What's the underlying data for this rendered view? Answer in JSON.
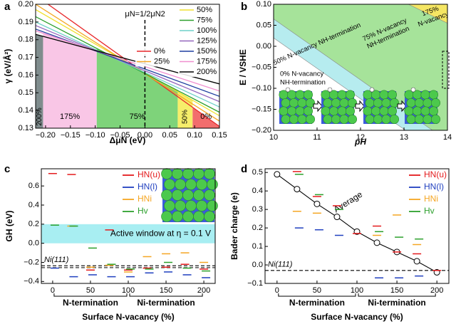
{
  "chart_data": [
    {
      "type": "line",
      "panel": "a",
      "xlabel": "ΔμN (eV)",
      "ylabel": "γ (eV/Å²)",
      "x": [
        -0.22,
        0.15
      ],
      "xlim": [
        -0.22,
        0.15
      ],
      "ylim": [
        0.13,
        0.2
      ],
      "xticks": [
        {
          "value": -0.2,
          "label": "−0.20"
        },
        {
          "value": -0.15,
          "label": "−0.15"
        },
        {
          "value": -0.1,
          "label": "−0.10"
        },
        {
          "value": -0.05,
          "label": "−0.05"
        },
        {
          "value": 0,
          "label": "0.00"
        },
        0.05,
        {
          "value": 0.1,
          "label": "0.10"
        },
        0.15
      ],
      "yticks": [
        0.13,
        0.14,
        0.15,
        0.16,
        0.17,
        0.18,
        0.19,
        {
          "value": 0.2,
          "label": "0.20"
        }
      ],
      "series": [
        {
          "name": "0%",
          "color": "#e8272a",
          "values": [
            0.205,
            0.131
          ]
        },
        {
          "name": "25%",
          "color": "#f5a623",
          "values": [
            0.2,
            0.134
          ]
        },
        {
          "name": "50%",
          "color": "#f0e130",
          "values": [
            0.197,
            0.137
          ]
        },
        {
          "name": "75%",
          "color": "#2ca02c",
          "values": [
            0.193,
            0.139
          ]
        },
        {
          "name": "100%",
          "color": "#6fd0c8",
          "values": [
            0.19,
            0.142
          ]
        },
        {
          "name": "125%",
          "color": "#9467bd",
          "values": [
            0.188,
            0.145
          ]
        },
        {
          "name": "150%",
          "color": "#1f3fa0",
          "values": [
            0.186,
            0.148
          ]
        },
        {
          "name": "175%",
          "color": "#f08fd0",
          "values": [
            0.185,
            0.151
          ]
        },
        {
          "name": "200%",
          "color": "#000000",
          "values": [
            0.183,
            0.155
          ]
        }
      ],
      "regions": [
        {
          "label": "200%",
          "from": -0.22,
          "to": -0.205,
          "color": "#7f8c8d"
        },
        {
          "label": "175%",
          "from": -0.205,
          "to": -0.097,
          "color": "#f9c6e6"
        },
        {
          "label": "75%",
          "from": -0.097,
          "to": 0.066,
          "color": "#7ed37a"
        },
        {
          "label": "50%",
          "from": 0.066,
          "to": 0.096,
          "color": "#f6ee6a"
        },
        {
          "label": "0%",
          "from": 0.096,
          "to": 0.15,
          "color": "#f26d6d"
        }
      ],
      "vline": {
        "x": 0,
        "label": "μN=1/2μN2"
      }
    },
    {
      "type": "phase",
      "panel": "b",
      "xlabel": "pH",
      "ylabel": "E / VSHE",
      "x": [
        10,
        14
      ],
      "xlim": [
        10,
        14
      ],
      "ylim": [
        -0.2,
        0.1
      ],
      "xticks": [
        10,
        11,
        12,
        13,
        14
      ],
      "yticks": [
        {
          "value": 0.1,
          "label": "0.10"
        },
        0.05,
        {
          "value": 0,
          "label": "0.00"
        },
        {
          "value": -0.05,
          "label": "−0.05"
        },
        {
          "value": -0.1,
          "label": "−0.10"
        },
        {
          "value": -0.15,
          "label": "−0.15"
        },
        {
          "value": -0.2,
          "label": "−0.20"
        }
      ],
      "boundaries": [
        [
          0.02,
          -0.27
        ],
        [
          0.065,
          -0.225
        ],
        [
          0.255,
          0.055
        ]
      ],
      "regions": [
        {
          "label": [
            "0% N-vacancy",
            "NH-termination"
          ],
          "color": "#ffffff"
        },
        {
          "label": [
            "50% N-vacancy NH-termination"
          ],
          "color": "#b6ecef"
        },
        {
          "label": [
            "75% N-vacancy",
            "NH-termination"
          ],
          "color": "#a6e39a"
        },
        {
          "label": [
            "175%",
            "N-vacancy"
          ],
          "color": "#f5e663"
        }
      ]
    },
    {
      "type": "dash",
      "panel": "c",
      "xlabel": "Surface N-vacancy (%)",
      "ylabel": "GH (eV)",
      "x": [
        0,
        25,
        50,
        75,
        100,
        125,
        150,
        175,
        200
      ],
      "xlim": [
        -15,
        215
      ],
      "ylim": [
        -0.42,
        0.78
      ],
      "xticks": [
        0,
        50,
        100,
        150,
        200
      ],
      "yticks": [
        {
          "value": -0.4,
          "label": "−0.4"
        },
        {
          "value": -0.2,
          "label": "−0.2"
        },
        {
          "value": 0,
          "label": "0.0"
        },
        0.2,
        0.4,
        0.6
      ],
      "series": [
        {
          "name": "HN(u)",
          "color": "#e41a1c",
          "values": [
            0.73,
            0.72,
            -0.28,
            0.14,
            -0.28,
            -0.26,
            -0.25,
            -0.22,
            -0.27
          ]
        },
        {
          "name": "HN(l)",
          "color": "#1f3fbf",
          "values": [
            -0.26,
            -0.35,
            -0.33,
            -0.35,
            -0.35,
            -0.31,
            -0.3,
            -0.33,
            -0.36
          ]
        },
        {
          "name": "HNi",
          "color": "#f5a623",
          "values": [
            null,
            0.18,
            -0.25,
            -0.23,
            -0.3,
            -0.14,
            -0.11,
            -0.1,
            -0.2
          ]
        },
        {
          "name": "Hv",
          "color": "#2ca02c",
          "values": [
            0.19,
            0.18,
            -0.05,
            -0.22,
            -0.27,
            -0.27,
            -0.2,
            -0.26,
            -0.29
          ]
        }
      ],
      "band": {
        "label": "Active window at η = 0.1 V",
        "range": [
          0,
          0.2
        ]
      },
      "reference": {
        "label": "Ni(111)",
        "values": [
          -0.235,
          -0.255
        ]
      },
      "groups": [
        {
          "label": "N-termination",
          "range": [
            0,
            100
          ]
        },
        {
          "label": "Ni-termination",
          "range": [
            100,
            200
          ]
        }
      ]
    },
    {
      "type": "dash",
      "panel": "d",
      "xlabel": "Surface N-vacancy (%)",
      "ylabel": "Bader charge (e)",
      "x": [
        0,
        25,
        50,
        75,
        100,
        125,
        150,
        175,
        200
      ],
      "xlim": [
        -15,
        215
      ],
      "ylim": [
        -0.1,
        0.52
      ],
      "xticks": [
        0,
        50,
        100,
        150,
        200
      ],
      "yticks": [
        {
          "value": -0.1,
          "label": "−0.1"
        },
        {
          "value": 0,
          "label": "0.0"
        },
        0.1,
        0.2,
        0.3,
        0.4,
        0.5
      ],
      "series": [
        {
          "name": "HN(u)",
          "color": "#e41a1c",
          "values": [
            null,
            0.505,
            0.37,
            0.32,
            0.17,
            0.21,
            0.07,
            0.06,
            -0.03
          ]
        },
        {
          "name": "HN(l)",
          "color": "#1f3fbf",
          "values": [
            null,
            0.2,
            0.19,
            0.16,
            null,
            -0.07,
            -0.07,
            -0.06,
            null
          ]
        },
        {
          "name": "HNi",
          "color": "#f5a623",
          "values": [
            null,
            0.29,
            0.28,
            null,
            null,
            0.16,
            0.27,
            0.11,
            null
          ]
        },
        {
          "name": "Hv",
          "color": "#2ca02c",
          "values": [
            null,
            0.49,
            0.38,
            0.3,
            null,
            0.18,
            0.15,
            0.14,
            null
          ]
        }
      ],
      "average": {
        "name": "Average",
        "values": [
          0.49,
          0.41,
          0.33,
          0.26,
          0.18,
          0.12,
          0.07,
          0.02,
          -0.04
        ]
      },
      "reference": {
        "label": "Ni(111)",
        "values": [
          -0.03
        ]
      },
      "groups": [
        {
          "label": "N-termination",
          "range": [
            0,
            100
          ]
        },
        {
          "label": "Ni-termination",
          "range": [
            100,
            200
          ]
        }
      ]
    }
  ]
}
